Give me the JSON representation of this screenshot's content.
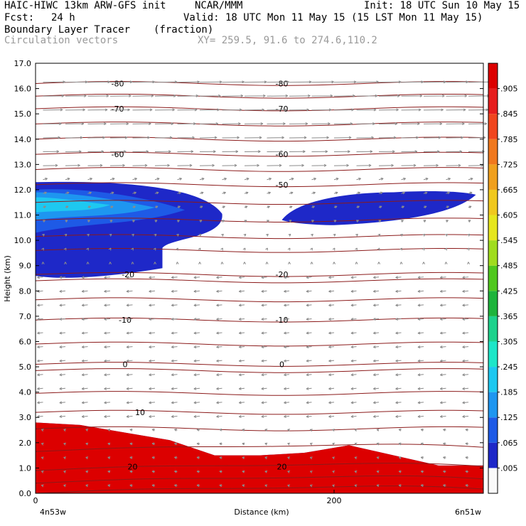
{
  "header": {
    "model": "HAIC-HIWC 13km ARW-GFS init",
    "org": "NCAR/MMM",
    "init": "Init: 18 UTC Sun 10 May 15",
    "fcst_label": "Fcst:",
    "fcst_value": "24 h",
    "valid": "Valid: 18 UTC Mon 11 May 15 (15 LST Mon 11 May 15)",
    "field": "Boundary Layer Tracer",
    "units": "(fraction)",
    "overlay": "Circulation vectors",
    "xy": "XY= 259.5, 91.6 to 274.6,110.2"
  },
  "chart_data": {
    "type": "heatmap",
    "xlabel": "Distance (km)",
    "ylabel": "Height (km)",
    "xlim": [
      0,
      300
    ],
    "ylim": [
      0,
      17
    ],
    "x_ticks": [
      "0",
      "200"
    ],
    "x_end_labels": {
      "left": "4n53w",
      "right": "6n51w"
    },
    "y_ticks": [
      "0.0",
      "1.0",
      "2.0",
      "3.0",
      "4.0",
      "5.0",
      "6.0",
      "7.0",
      "8.0",
      "9.0",
      "10.0",
      "11.0",
      "12.0",
      "13.0",
      "14.0",
      "15.0",
      "16.0",
      "17.0"
    ],
    "colorbar": {
      "labels": [
        ".005",
        ".065",
        ".125",
        ".185",
        ".245",
        ".305",
        ".365",
        ".425",
        ".485",
        ".545",
        ".605",
        ".665",
        ".725",
        ".785",
        ".845",
        ".905"
      ],
      "colors": [
        "#fafafa",
        "#1e28c8",
        "#1e5ae6",
        "#1e96f0",
        "#1ec8f0",
        "#1ee6c8",
        "#1ed28c",
        "#1eb43c",
        "#50c81e",
        "#a0dc1e",
        "#e6e61e",
        "#f0c81e",
        "#f0a01e",
        "#f0781e",
        "#f0461e",
        "#e61e1e",
        "#dc0000"
      ]
    },
    "temperature_contours": {
      "labels": [
        "-80",
        "-70",
        "-60",
        "-50",
        "-20",
        "-10",
        "0",
        "10",
        "20"
      ],
      "color": "#8b1a1a"
    },
    "vector_color": "#8c8c8c",
    "tracer_upper_left": {
      "x_range_km": [
        0,
        125
      ],
      "z_range_km": [
        8.6,
        12.3
      ],
      "max_fraction": 0.2
    },
    "tracer_upper_right": {
      "x_range_km": [
        165,
        295
      ],
      "z_range_km": [
        10.7,
        11.9
      ],
      "max_fraction": 0.07
    },
    "tracer_boundary_layer_top_km": [
      2.8,
      2.7,
      2.4,
      2.1,
      1.5,
      1.5,
      1.6,
      1.9,
      1.5,
      1.1,
      1.1
    ]
  }
}
